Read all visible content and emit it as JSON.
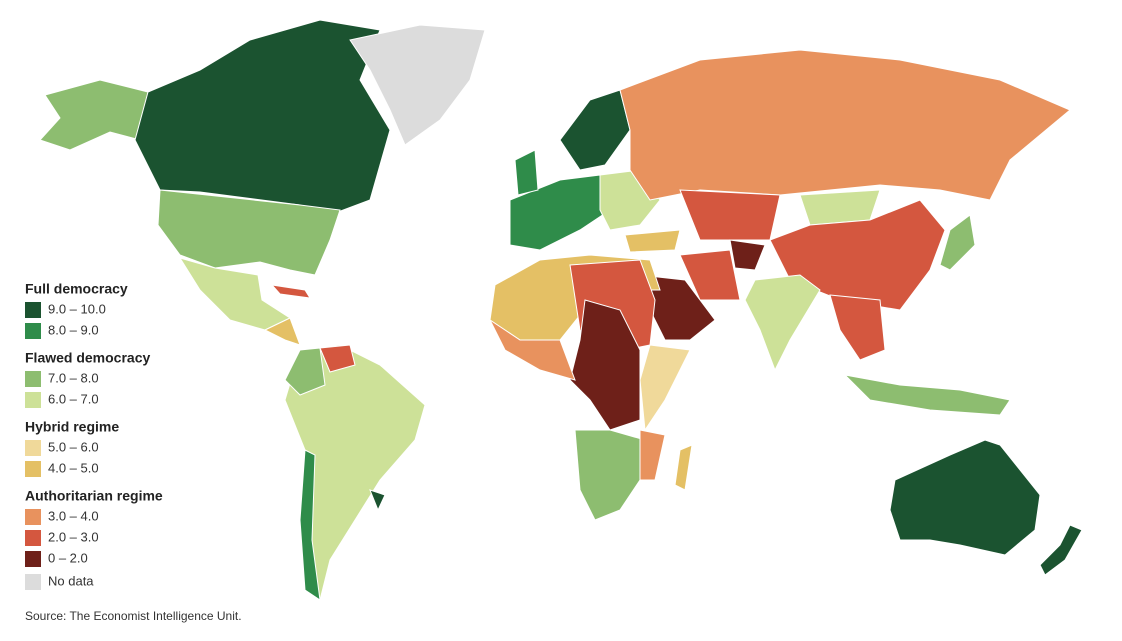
{
  "legend": {
    "groups": [
      {
        "title": "Full democracy",
        "items": [
          {
            "label": "9.0 – 10.0",
            "color": "#1b5330"
          },
          {
            "label": "8.0 – 9.0",
            "color": "#2f8c4a"
          }
        ]
      },
      {
        "title": "Flawed democracy",
        "items": [
          {
            "label": "7.0 – 8.0",
            "color": "#8dbd70"
          },
          {
            "label": "6.0 – 7.0",
            "color": "#cde198"
          }
        ]
      },
      {
        "title": "Hybrid regime",
        "items": [
          {
            "label": "5.0 – 6.0",
            "color": "#f0d99a"
          },
          {
            "label": "4.0 – 5.0",
            "color": "#e4c065"
          }
        ]
      },
      {
        "title": "Authoritarian regime",
        "items": [
          {
            "label": "3.0 – 4.0",
            "color": "#e8925e"
          },
          {
            "label": "2.0 – 3.0",
            "color": "#d4573f"
          },
          {
            "label": "0 – 2.0",
            "color": "#6e2019"
          }
        ]
      }
    ],
    "no_data": {
      "label": "No data",
      "color": "#dcdcdc"
    }
  },
  "source": "Source: The Economist Intelligence Unit."
}
